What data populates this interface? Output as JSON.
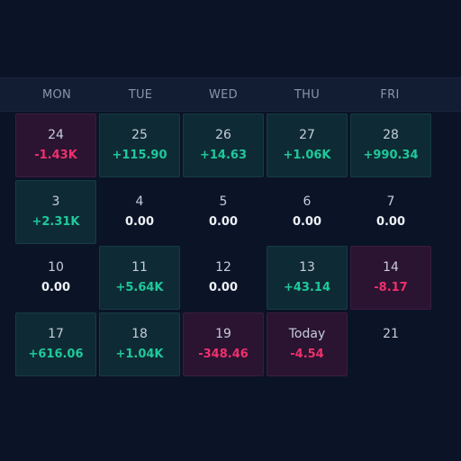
{
  "calendar": {
    "weekdays": [
      "MON",
      "TUE",
      "WED",
      "THU",
      "FRI"
    ],
    "colors": {
      "positive": "#1fc99a",
      "negative": "#f0306b",
      "neutral": "#eef1f6"
    },
    "weeks": [
      [
        {
          "day": "24",
          "value": "-1.43K",
          "status": "negative"
        },
        {
          "day": "25",
          "value": "+115.90",
          "status": "positive"
        },
        {
          "day": "26",
          "value": "+14.63",
          "status": "positive"
        },
        {
          "day": "27",
          "value": "+1.06K",
          "status": "positive"
        },
        {
          "day": "28",
          "value": "+990.34",
          "status": "positive"
        }
      ],
      [
        {
          "day": "3",
          "value": "+2.31K",
          "status": "positive"
        },
        {
          "day": "4",
          "value": "0.00",
          "status": "neutral"
        },
        {
          "day": "5",
          "value": "0.00",
          "status": "neutral"
        },
        {
          "day": "6",
          "value": "0.00",
          "status": "neutral"
        },
        {
          "day": "7",
          "value": "0.00",
          "status": "neutral"
        }
      ],
      [
        {
          "day": "10",
          "value": "0.00",
          "status": "neutral"
        },
        {
          "day": "11",
          "value": "+5.64K",
          "status": "positive"
        },
        {
          "day": "12",
          "value": "0.00",
          "status": "neutral"
        },
        {
          "day": "13",
          "value": "+43.14",
          "status": "positive"
        },
        {
          "day": "14",
          "value": "-8.17",
          "status": "negative"
        }
      ],
      [
        {
          "day": "17",
          "value": "+616.06",
          "status": "positive"
        },
        {
          "day": "18",
          "value": "+1.04K",
          "status": "positive"
        },
        {
          "day": "19",
          "value": "-348.46",
          "status": "negative"
        },
        {
          "day": "Today",
          "value": "-4.54",
          "status": "negative"
        },
        {
          "day": "21",
          "value": "",
          "status": "neutral"
        }
      ]
    ]
  }
}
